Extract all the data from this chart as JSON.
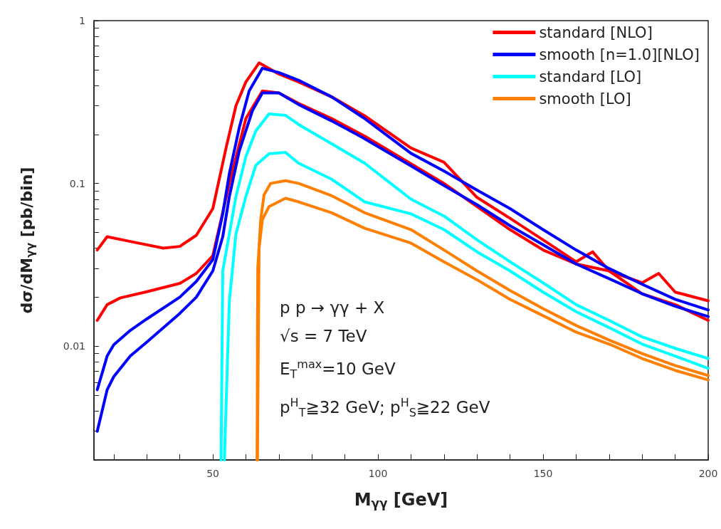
{
  "chart_data": {
    "type": "line",
    "xlabel": "M$_{γγ}$ [GeV]",
    "ylabel": "dσ/dM$_{γγ}$ [pb/bin]",
    "annotations": [
      "p p → γγ + X",
      "√s = 7 TeV",
      "E$_{T}$$^{max}$=10 GeV",
      "p$^{H}$$_{T}$≧32 GeV; p$^{H}$$_{S}$≧22 GeV"
    ],
    "log": "y",
    "grid": false,
    "legend": "top right",
    "marker": "none",
    "line_style": "solid",
    "xlim": [
      14,
      200
    ],
    "xticks": [
      {
        "value": 20,
        "label": null
      },
      {
        "value": 30,
        "label": null
      },
      {
        "value": 40,
        "label": null
      },
      50,
      {
        "value": 60,
        "label": null
      },
      {
        "value": 70,
        "label": null
      },
      {
        "value": 80,
        "label": null
      },
      {
        "value": 90,
        "label": null
      },
      100,
      {
        "value": 110,
        "label": null
      },
      {
        "value": 120,
        "label": null
      },
      {
        "value": 130,
        "label": null
      },
      {
        "value": 140,
        "label": null
      },
      150,
      {
        "value": 160,
        "label": null
      },
      {
        "value": 170,
        "label": null
      },
      {
        "value": 180,
        "label": null
      },
      {
        "value": 190,
        "label": null
      },
      200
    ],
    "ylim": [
      0.002,
      1
    ],
    "yticks": [
      {
        "value": 0.002,
        "label": null
      },
      {
        "value": 0.003,
        "label": null
      },
      {
        "value": 0.004,
        "label": null
      },
      {
        "value": 0.005,
        "label": null
      },
      {
        "value": 0.006,
        "label": null
      },
      {
        "value": 0.007,
        "label": null
      },
      {
        "value": 0.008,
        "label": null
      },
      {
        "value": 0.009,
        "label": null
      },
      0.01,
      {
        "value": 0.02,
        "label": null
      },
      {
        "value": 0.03,
        "label": null
      },
      {
        "value": 0.04,
        "label": null
      },
      {
        "value": 0.05,
        "label": null
      },
      {
        "value": 0.06,
        "label": null
      },
      {
        "value": 0.07,
        "label": null
      },
      {
        "value": 0.08,
        "label": null
      },
      {
        "value": 0.09,
        "label": null
      },
      0.1,
      {
        "value": 0.2,
        "label": null
      },
      {
        "value": 0.3,
        "label": null
      },
      {
        "value": 0.4,
        "label": null
      },
      {
        "value": 0.5,
        "label": null
      },
      {
        "value": 0.6,
        "label": null
      },
      {
        "value": 0.7,
        "label": null
      },
      {
        "value": 0.8,
        "label": null
      },
      {
        "value": 0.9,
        "label": null
      },
      1
    ],
    "series": [
      {
        "name": "standard [NLO]",
        "color": "#ff0000",
        "x": [
          15,
          18,
          25,
          35,
          40,
          45,
          50,
          54,
          57,
          60,
          64,
          70,
          76,
          86,
          96,
          110,
          120,
          130,
          140,
          150,
          160,
          165,
          170,
          180,
          185,
          190,
          200
        ],
        "values": [
          0.039,
          0.047,
          0.044,
          0.04,
          0.041,
          0.048,
          0.07,
          0.165,
          0.3,
          0.42,
          0.55,
          0.47,
          0.42,
          0.34,
          0.26,
          0.165,
          0.135,
          0.082,
          0.061,
          0.045,
          0.033,
          0.038,
          0.029,
          0.0245,
          0.028,
          0.0215,
          0.019
        ]
      },
      {
        "color": "#ff0000",
        "x": [
          15,
          18,
          22,
          30,
          40,
          45,
          50,
          55,
          60,
          65,
          70,
          76,
          86,
          96,
          110,
          120,
          130,
          140,
          150,
          160,
          170,
          180,
          190,
          200
        ],
        "values": [
          0.0144,
          0.018,
          0.0198,
          0.0216,
          0.0243,
          0.028,
          0.036,
          0.1,
          0.25,
          0.37,
          0.36,
          0.31,
          0.25,
          0.195,
          0.132,
          0.1,
          0.072,
          0.052,
          0.039,
          0.032,
          0.029,
          0.021,
          0.018,
          0.0144
        ]
      },
      {
        "name": "smooth [n=1.0][NLO]",
        "color": "#0000ff",
        "x": [
          15,
          18,
          20,
          25,
          30,
          40,
          45,
          50,
          53,
          55,
          58,
          61,
          65,
          70,
          76,
          86,
          96,
          110,
          120,
          130,
          140,
          150,
          160,
          170,
          180,
          190,
          200
        ],
        "values": [
          0.0054,
          0.0087,
          0.0102,
          0.0125,
          0.0147,
          0.02,
          0.025,
          0.034,
          0.065,
          0.115,
          0.22,
          0.37,
          0.51,
          0.48,
          0.43,
          0.34,
          0.25,
          0.153,
          0.119,
          0.091,
          0.07,
          0.052,
          0.039,
          0.03,
          0.024,
          0.0194,
          0.0167
        ]
      },
      {
        "color": "#0000ff",
        "x": [
          15,
          18,
          20,
          25,
          30,
          40,
          45,
          50,
          53,
          55,
          58,
          62,
          65,
          70,
          76,
          86,
          96,
          110,
          120,
          130,
          140,
          150,
          160,
          170,
          180,
          190,
          200
        ],
        "values": [
          0.003,
          0.0054,
          0.0065,
          0.0087,
          0.0106,
          0.0159,
          0.02,
          0.029,
          0.047,
          0.083,
          0.158,
          0.28,
          0.36,
          0.36,
          0.305,
          0.242,
          0.188,
          0.128,
          0.097,
          0.074,
          0.055,
          0.042,
          0.032,
          0.026,
          0.021,
          0.0176,
          0.0152
        ]
      },
      {
        "name": "standard [LO]",
        "color": "#00ffff",
        "x": [
          52.5,
          53,
          55,
          57,
          60,
          63,
          67,
          72,
          76,
          86,
          96,
          110,
          120,
          130,
          140,
          150,
          160,
          170,
          180,
          190,
          200
        ],
        "values": [
          0.002,
          0.029,
          0.049,
          0.083,
          0.146,
          0.21,
          0.267,
          0.262,
          0.23,
          0.175,
          0.133,
          0.08,
          0.063,
          0.045,
          0.033,
          0.0245,
          0.018,
          0.0144,
          0.0114,
          0.0097,
          0.0084
        ]
      },
      {
        "color": "#00ffff",
        "x": [
          53.5,
          55,
          57,
          60,
          63,
          67,
          72,
          76,
          86,
          96,
          110,
          120,
          130,
          140,
          150,
          160,
          170,
          180,
          190,
          200
        ],
        "values": [
          0.002,
          0.019,
          0.049,
          0.083,
          0.129,
          0.152,
          0.155,
          0.133,
          0.106,
          0.077,
          0.065,
          0.052,
          0.038,
          0.029,
          0.0215,
          0.0163,
          0.013,
          0.0103,
          0.0087,
          0.0073
        ]
      },
      {
        "name": "smooth [LO]",
        "color": "#ff8000",
        "x": [
          63.4,
          63.6,
          64.5,
          65.5,
          67.5,
          72,
          76,
          86,
          96,
          110,
          120,
          130,
          140,
          150,
          160,
          170,
          180,
          190,
          200
        ],
        "values": [
          0.002,
          0.03,
          0.06,
          0.085,
          0.1,
          0.104,
          0.1,
          0.084,
          0.066,
          0.052,
          0.039,
          0.029,
          0.022,
          0.017,
          0.0134,
          0.0109,
          0.009,
          0.0076,
          0.0066
        ]
      },
      {
        "color": "#ff8000",
        "x": [
          63.5,
          64,
          65,
          67,
          72,
          76,
          86,
          96,
          110,
          120,
          130,
          140,
          150,
          160,
          170,
          180,
          190,
          200
        ],
        "values": [
          0.002,
          0.04,
          0.06,
          0.072,
          0.081,
          0.077,
          0.066,
          0.053,
          0.043,
          0.033,
          0.0256,
          0.0194,
          0.0154,
          0.0122,
          0.0103,
          0.0084,
          0.0071,
          0.0062
        ]
      }
    ]
  }
}
